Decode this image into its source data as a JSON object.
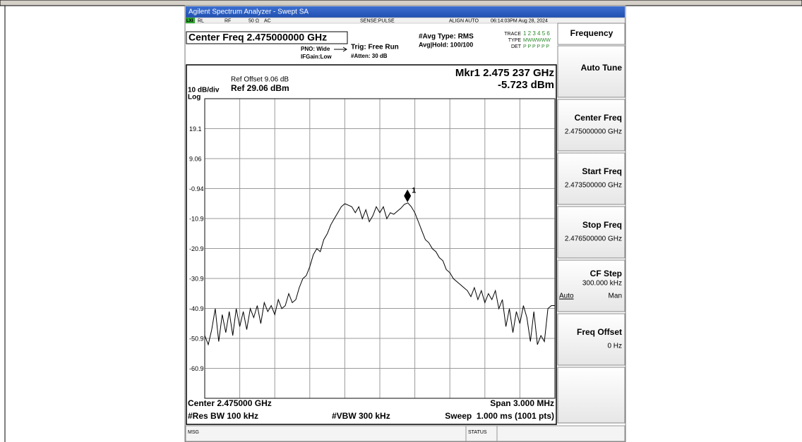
{
  "window_title": "Agilent Spectrum Analyzer - Swept SA",
  "status_row": {
    "lxi": "LXI",
    "rl": "RL",
    "rf": "RF",
    "impedance": "50 Ω",
    "coupling": "AC",
    "sense": "SENSE:PULSE",
    "align": "ALIGN AUTO",
    "datetime": "06:14:03PM Aug 28, 2024"
  },
  "header": {
    "center_freq": "Center Freq 2.475000000 GHz",
    "pno": "PNO: Wide",
    "ifgain": "IFGain:Low",
    "trig": "Trig: Free Run",
    "atten": "#Atten: 30 dB",
    "avg_type": "#Avg Type: RMS",
    "avg_hold": "Avg|Hold: 100/100",
    "trace_label": "TRACE",
    "trace_nums": "1 2 3 4 5 6",
    "type_label": "TYPE",
    "type_vals": "MWWWWW",
    "det_label": "DET",
    "det_vals": "P P P P P P"
  },
  "plot": {
    "ref_offset": "Ref Offset 9.06 dB",
    "scale": "10 dB/div",
    "ref": "Ref 29.06 dBm",
    "scale_type": "Log",
    "ylim": [
      -70.94,
      29.06
    ],
    "yticks": [
      {
        "value": 19.06,
        "label": "19.1"
      },
      9.06,
      -0.94,
      {
        "value": -10.94,
        "label": "-10.9"
      },
      {
        "value": -20.94,
        "label": "-20.9"
      },
      {
        "value": -30.94,
        "label": "-30.9"
      },
      {
        "value": -40.94,
        "label": "-40.9"
      },
      {
        "value": -50.94,
        "label": "-50.9"
      },
      {
        "value": -60.94,
        "label": "-60.9"
      }
    ],
    "xlim": [
      2.4735,
      2.4765
    ],
    "trace": {
      "color": "#000000",
      "values": [
        -50,
        -53,
        -48,
        -41,
        -52,
        -43,
        -49,
        -42,
        -50,
        -41,
        -47,
        -42,
        -48,
        -41,
        -44,
        -40,
        -46,
        -39,
        -42,
        -40,
        -43,
        -38,
        -41,
        -40,
        -36,
        -39,
        -38,
        -34,
        -31,
        -30,
        -27,
        -23,
        -21,
        -22,
        -18,
        -16,
        -13,
        -11,
        -9,
        -7,
        -6,
        -6.5,
        -7,
        -9,
        -7,
        -11,
        -8,
        -12,
        -10,
        -7,
        -9,
        -7,
        -11,
        -9,
        -9.5,
        -8.5,
        -7.5,
        -6.2,
        -5.723,
        -7,
        -9,
        -12,
        -15,
        -18,
        -19,
        -21,
        -22,
        -24,
        -25,
        -28,
        -29,
        -31,
        -32,
        -33,
        -34,
        -35,
        -37,
        -34,
        -38,
        -35,
        -39,
        -36,
        -38,
        -35,
        -41,
        -38,
        -47,
        -41,
        -49,
        -42,
        -46,
        -40,
        -44,
        -52,
        -42,
        -53,
        -50,
        -52,
        -41,
        -40,
        -40
      ]
    },
    "marker": {
      "freq_label": "Mkr1 2.475 237 GHz",
      "x": 2.475237,
      "value": -5.723,
      "value_label": "-5.723 dBm",
      "number": "1"
    }
  },
  "footer": {
    "center": "Center 2.475000 GHz",
    "span": "Span 3.000 MHz",
    "rbw": "#Res BW 100 kHz",
    "vbw": "#VBW 300 kHz",
    "sweep": "Sweep  1.000 ms (1001 pts)"
  },
  "softkeys": {
    "menu": "Frequency",
    "keys": [
      {
        "label": "Auto Tune"
      },
      {
        "label": "Center Freq",
        "value": "2.475000000 GHz"
      },
      {
        "label": "Start Freq",
        "value": "2.473500000 GHz"
      },
      {
        "label": "Stop Freq",
        "value": "2.476500000 GHz"
      },
      {
        "label": "CF Step",
        "value": "300.000 kHz",
        "auto": "Auto",
        "man": "Man"
      },
      {
        "label": "Freq Offset",
        "value": "0 Hz"
      }
    ]
  },
  "status_bar": {
    "msg": "MSG",
    "status": "STATUS"
  }
}
